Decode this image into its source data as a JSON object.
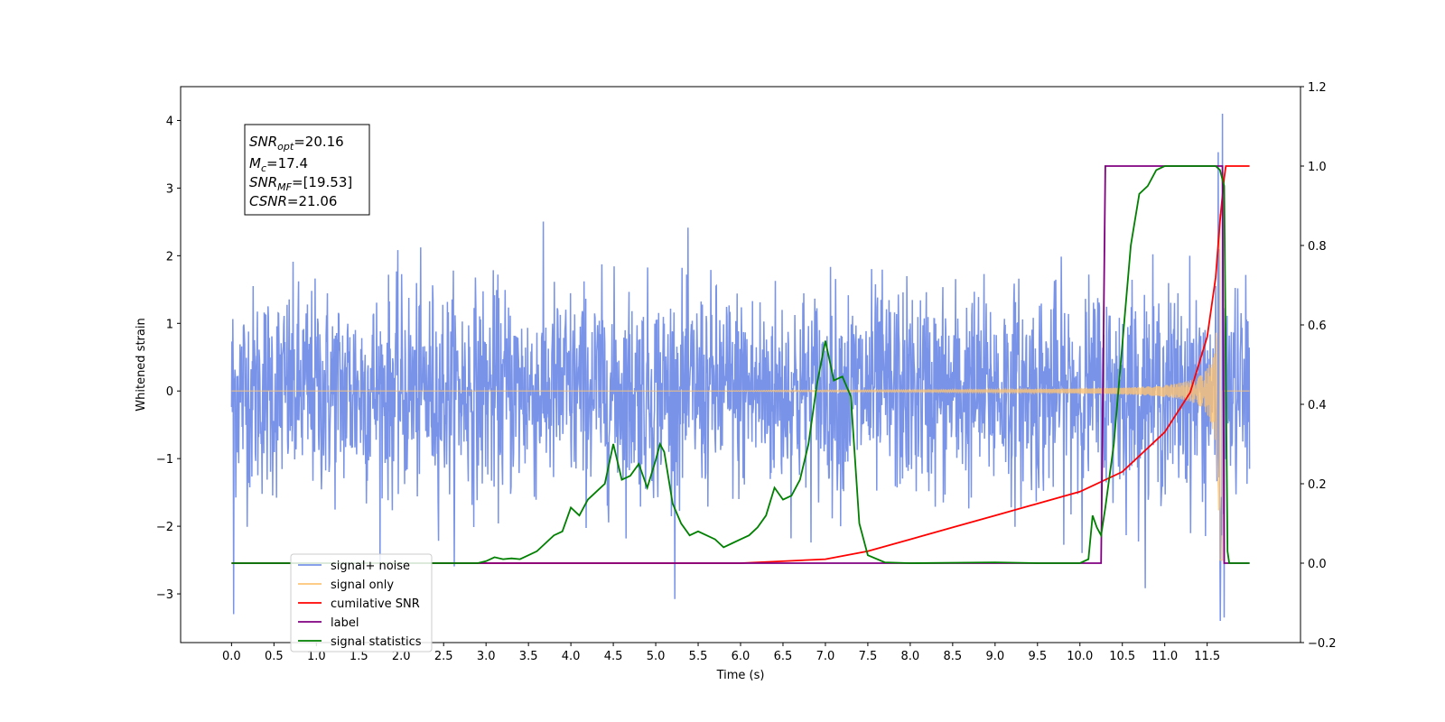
{
  "chart_data": {
    "type": "line",
    "xlabel": "Time (s)",
    "ylabel": "Whitened strain",
    "xlim": [
      -0.6,
      12.6
    ],
    "ylim": [
      -3.72,
      4.5
    ],
    "ylim_right": [
      -0.2,
      1.2
    ],
    "x_ticks": [
      "0.0",
      "0.5",
      "1.0",
      "1.5",
      "2.0",
      "2.5",
      "3.0",
      "3.5",
      "4.0",
      "4.5",
      "5.0",
      "5.5",
      "6.0",
      "6.5",
      "7.0",
      "7.5",
      "8.0",
      "8.5",
      "9.0",
      "9.5",
      "10.0",
      "10.5",
      "11.0",
      "11.5"
    ],
    "y_ticks_left": [
      4,
      3,
      2,
      1,
      0,
      -1,
      -2,
      -3
    ],
    "y_tick_labels_left": [
      "4",
      "3",
      "2",
      "1",
      "0",
      "−1",
      "−2",
      "−3"
    ],
    "y_ticks_right": [
      1.2,
      1.0,
      0.8,
      0.6,
      0.4,
      0.2,
      0.0,
      -0.2
    ],
    "y_tick_labels_right": [
      "1.2",
      "1.0",
      "0.8",
      "0.6",
      "0.4",
      "0.2",
      "0.0",
      "−0.2"
    ],
    "grid": false,
    "annotation": {
      "snr_opt": {
        "sym": "SNR",
        "sub": "opt",
        "val": "=20.16"
      },
      "mc": {
        "sym": "M",
        "sub": "c",
        "val": "=17.4"
      },
      "snr_mf": {
        "sym": "SNR",
        "sub": "MF",
        "val": "=[19.53]"
      },
      "csnr": {
        "sym": "CSNR",
        "val": "=21.06"
      }
    },
    "legend": {
      "position": "lower-left",
      "entries": [
        {
          "label": "signal+ noise",
          "color": "#7893e8"
        },
        {
          "label": "signal only",
          "color": "#fdc474"
        },
        {
          "label": "cumilative SNR",
          "color": "#ff0000"
        },
        {
          "label": "label",
          "color": "#800080"
        },
        {
          "label": "signal statistics",
          "color": "#008000"
        }
      ]
    },
    "series": [
      {
        "name": "signal+ noise",
        "axis": "left",
        "color": "#7893e8",
        "description_params": {
          "x_start": 0.0,
          "x_end": 12.0,
          "noise_sigma": 0.85,
          "envelope_peaks": [
            -3.3,
            4.1
          ]
        }
      },
      {
        "name": "signal only",
        "axis": "left",
        "color": "#fdc474",
        "description_params": {
          "x_start": 0.0,
          "x_end": 12.0,
          "chirp_onset": 6.5,
          "peak_time": 11.65,
          "peak_amp": 3.3
        }
      },
      {
        "name": "cumilative SNR",
        "axis": "right",
        "color": "#ff0000",
        "x": [
          0.0,
          6.0,
          7.0,
          7.5,
          8.0,
          8.5,
          9.0,
          9.5,
          10.0,
          10.5,
          11.0,
          11.3,
          11.5,
          11.6,
          11.65,
          11.7,
          11.72,
          12.0
        ],
        "y": [
          0.0,
          0.0,
          0.01,
          0.03,
          0.06,
          0.09,
          0.12,
          0.15,
          0.18,
          0.23,
          0.33,
          0.43,
          0.57,
          0.72,
          0.86,
          0.97,
          1.0,
          1.0
        ]
      },
      {
        "name": "label",
        "axis": "right",
        "color": "#800080",
        "x": [
          0.0,
          10.25,
          10.3,
          11.68,
          11.7,
          12.0
        ],
        "y": [
          0.0,
          0.0,
          1.0,
          1.0,
          0.0,
          0.0
        ]
      },
      {
        "name": "signal statistics",
        "axis": "right",
        "color": "#008000",
        "x": [
          0.0,
          2.9,
          3.0,
          3.1,
          3.2,
          3.3,
          3.4,
          3.5,
          3.6,
          3.7,
          3.8,
          3.9,
          4.0,
          4.1,
          4.2,
          4.3,
          4.4,
          4.5,
          4.6,
          4.7,
          4.8,
          4.9,
          5.0,
          5.05,
          5.1,
          5.2,
          5.3,
          5.4,
          5.5,
          5.6,
          5.7,
          5.8,
          5.9,
          6.0,
          6.1,
          6.2,
          6.3,
          6.4,
          6.5,
          6.6,
          6.7,
          6.8,
          6.9,
          7.0,
          7.1,
          7.2,
          7.3,
          7.4,
          7.5,
          7.7,
          8.0,
          9.0,
          9.5,
          10.0,
          10.1,
          10.15,
          10.2,
          10.25,
          10.3,
          10.4,
          10.5,
          10.6,
          10.7,
          10.8,
          10.9,
          11.0,
          11.3,
          11.6,
          11.65,
          11.7,
          11.72,
          11.74,
          11.76,
          11.8,
          12.0
        ],
        "y": [
          0.0,
          0.0,
          0.005,
          0.015,
          0.01,
          0.012,
          0.01,
          0.02,
          0.03,
          0.05,
          0.07,
          0.08,
          0.14,
          0.12,
          0.16,
          0.18,
          0.2,
          0.3,
          0.21,
          0.22,
          0.25,
          0.19,
          0.26,
          0.3,
          0.28,
          0.15,
          0.1,
          0.07,
          0.08,
          0.07,
          0.06,
          0.04,
          0.05,
          0.06,
          0.07,
          0.09,
          0.12,
          0.19,
          0.16,
          0.17,
          0.21,
          0.3,
          0.45,
          0.56,
          0.46,
          0.47,
          0.42,
          0.1,
          0.02,
          0.002,
          0.0,
          0.002,
          0.0,
          0.0,
          0.01,
          0.12,
          0.09,
          0.07,
          0.14,
          0.3,
          0.55,
          0.8,
          0.93,
          0.95,
          0.99,
          1.0,
          1.0,
          1.0,
          0.99,
          0.95,
          0.5,
          0.03,
          0.0,
          0.0,
          0.0
        ]
      }
    ]
  }
}
